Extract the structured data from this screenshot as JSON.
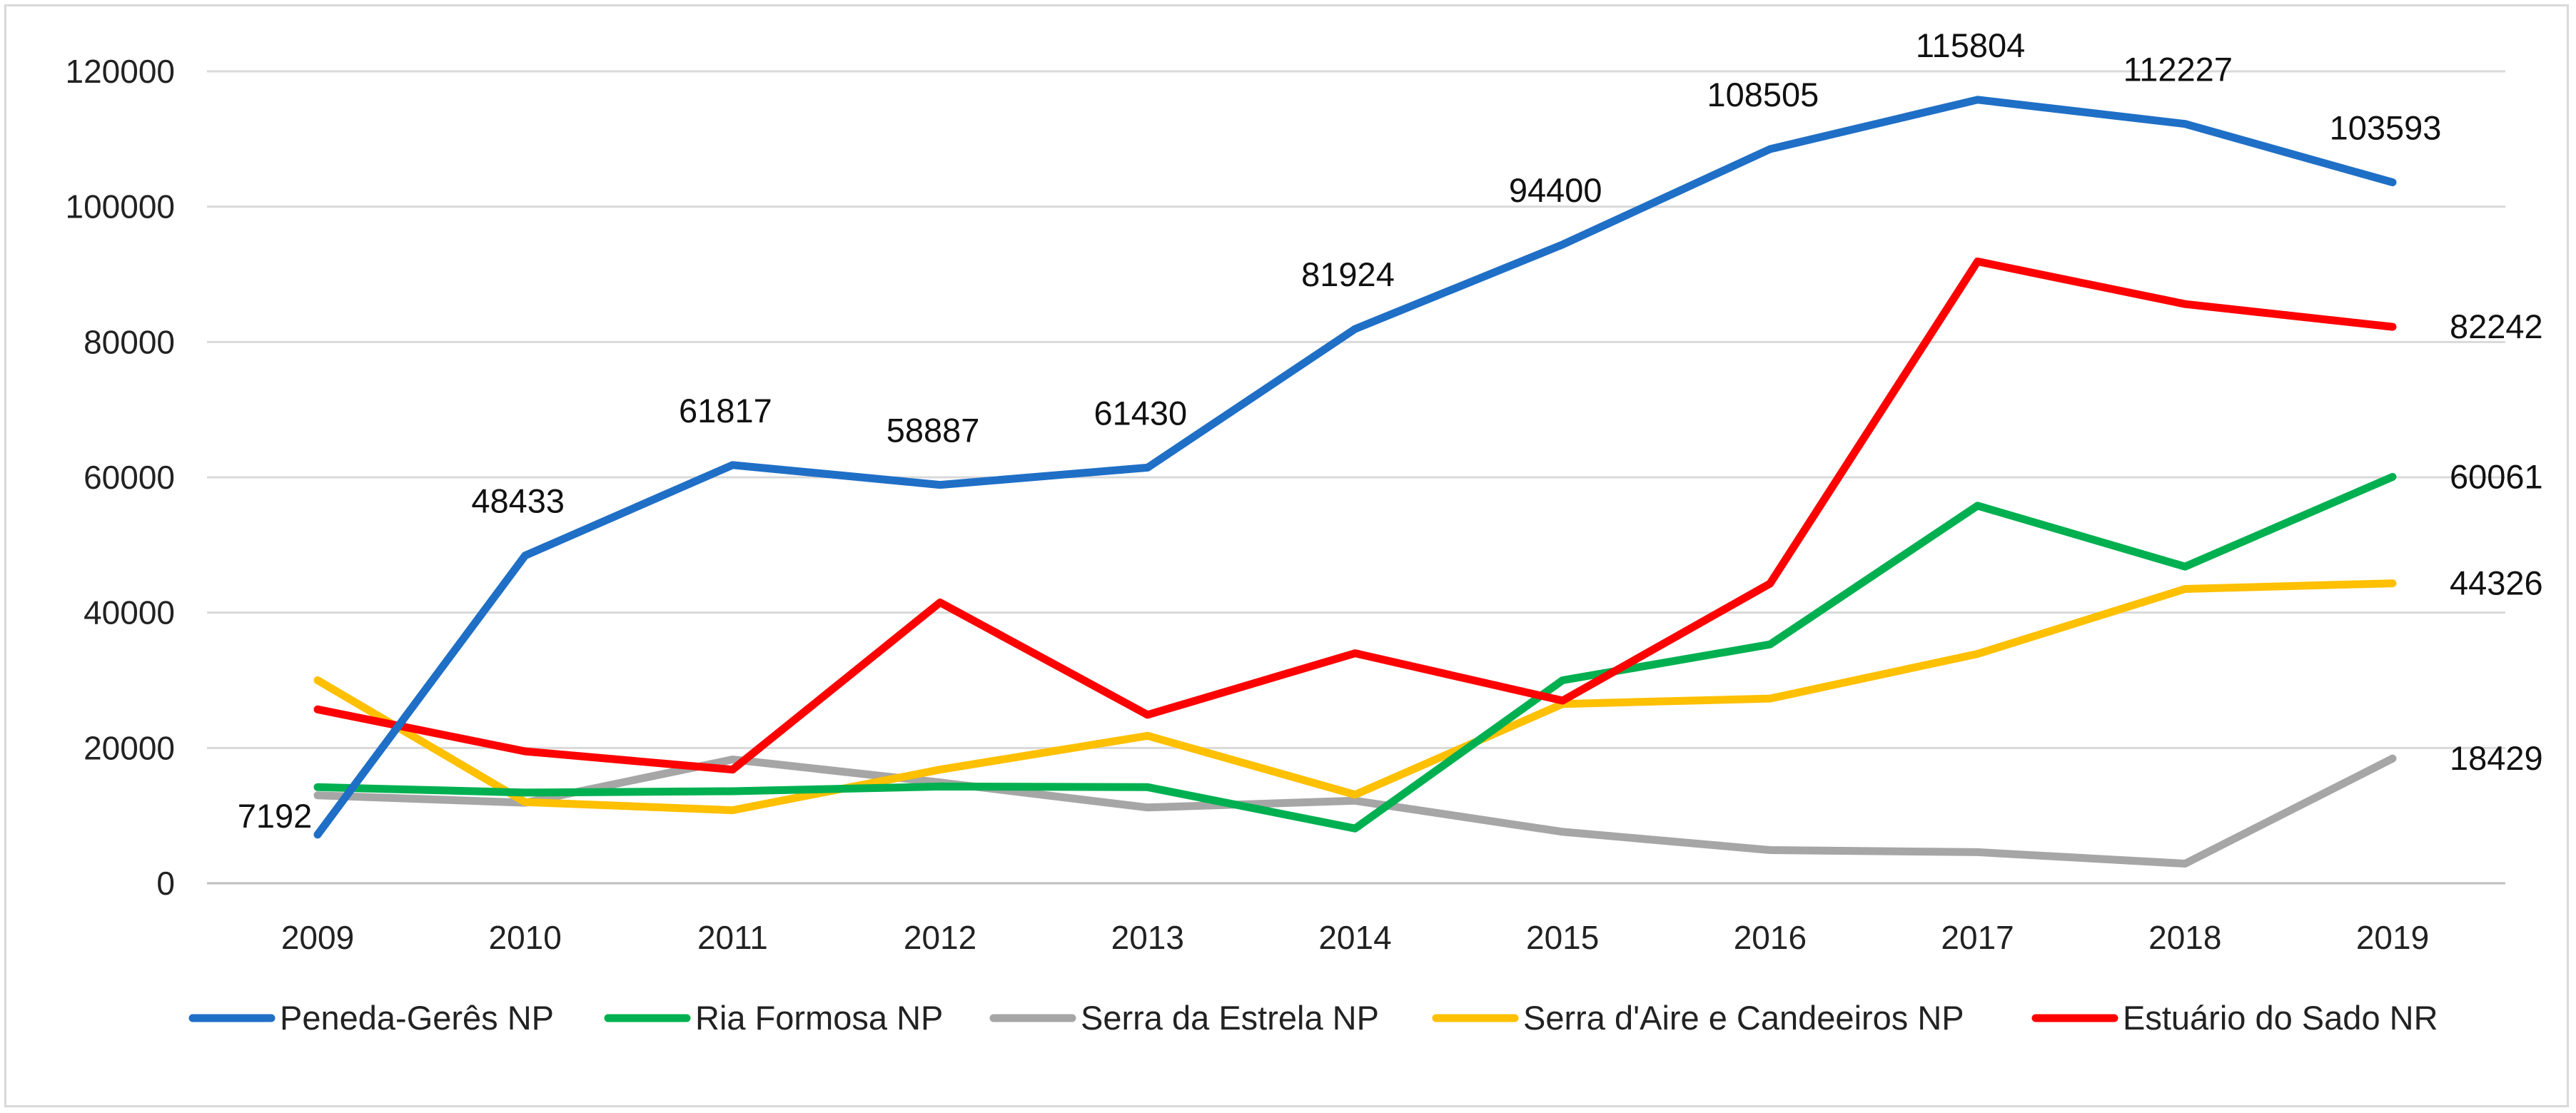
{
  "chart_data": {
    "type": "line",
    "title": "",
    "xlabel": "",
    "ylabel": "",
    "x": [
      2009,
      2010,
      2011,
      2012,
      2013,
      2014,
      2015,
      2016,
      2017,
      2018,
      2019
    ],
    "ylim": [
      0,
      120000
    ],
    "yticks": [
      0,
      20000,
      40000,
      60000,
      80000,
      100000,
      120000
    ],
    "grid": "horizontal",
    "legend_position": "bottom",
    "series": [
      {
        "name": "Peneda-Gerês NP",
        "color": "#1f6fc6",
        "values": [
          7192,
          48433,
          61817,
          58887,
          61430,
          81924,
          94400,
          108505,
          115804,
          112227,
          103593
        ],
        "labels": [
          "7192",
          "48433",
          "61817",
          "58887",
          "61430",
          "81924",
          "94400",
          "108505",
          "115804",
          "112227",
          "103593"
        ]
      },
      {
        "name": "Ria Formosa NP",
        "color": "#00b050",
        "values": [
          14200,
          13400,
          13600,
          14300,
          14200,
          8100,
          30000,
          35300,
          55800,
          46800,
          60061
        ],
        "labels": [
          "",
          "",
          "",
          "",
          "",
          "",
          "",
          "",
          "",
          "",
          "60061"
        ]
      },
      {
        "name": "Serra da Estrela NP",
        "color": "#a6a6a6",
        "values": [
          13000,
          11900,
          18300,
          14900,
          11200,
          12200,
          7600,
          4900,
          4600,
          2900,
          18429
        ],
        "labels": [
          "",
          "",
          "",
          "",
          "",
          "",
          "",
          "",
          "",
          "",
          "18429"
        ]
      },
      {
        "name": "Serra d'Aire e Candeeiros NP",
        "color": "#ffc000",
        "values": [
          30000,
          12000,
          10800,
          16800,
          21800,
          13100,
          26500,
          27300,
          33900,
          43500,
          44326
        ],
        "labels": [
          "",
          "",
          "",
          "",
          "",
          "",
          "",
          "",
          "",
          "",
          "44326"
        ]
      },
      {
        "name": "Estuário do Sado NR",
        "color": "#ff0000",
        "values": [
          25700,
          19500,
          16800,
          41500,
          24900,
          34000,
          27000,
          44300,
          91900,
          85600,
          82242
        ],
        "labels": [
          "",
          "",
          "",
          "",
          "",
          "",
          "",
          "",
          "",
          "",
          "82242"
        ]
      }
    ]
  }
}
